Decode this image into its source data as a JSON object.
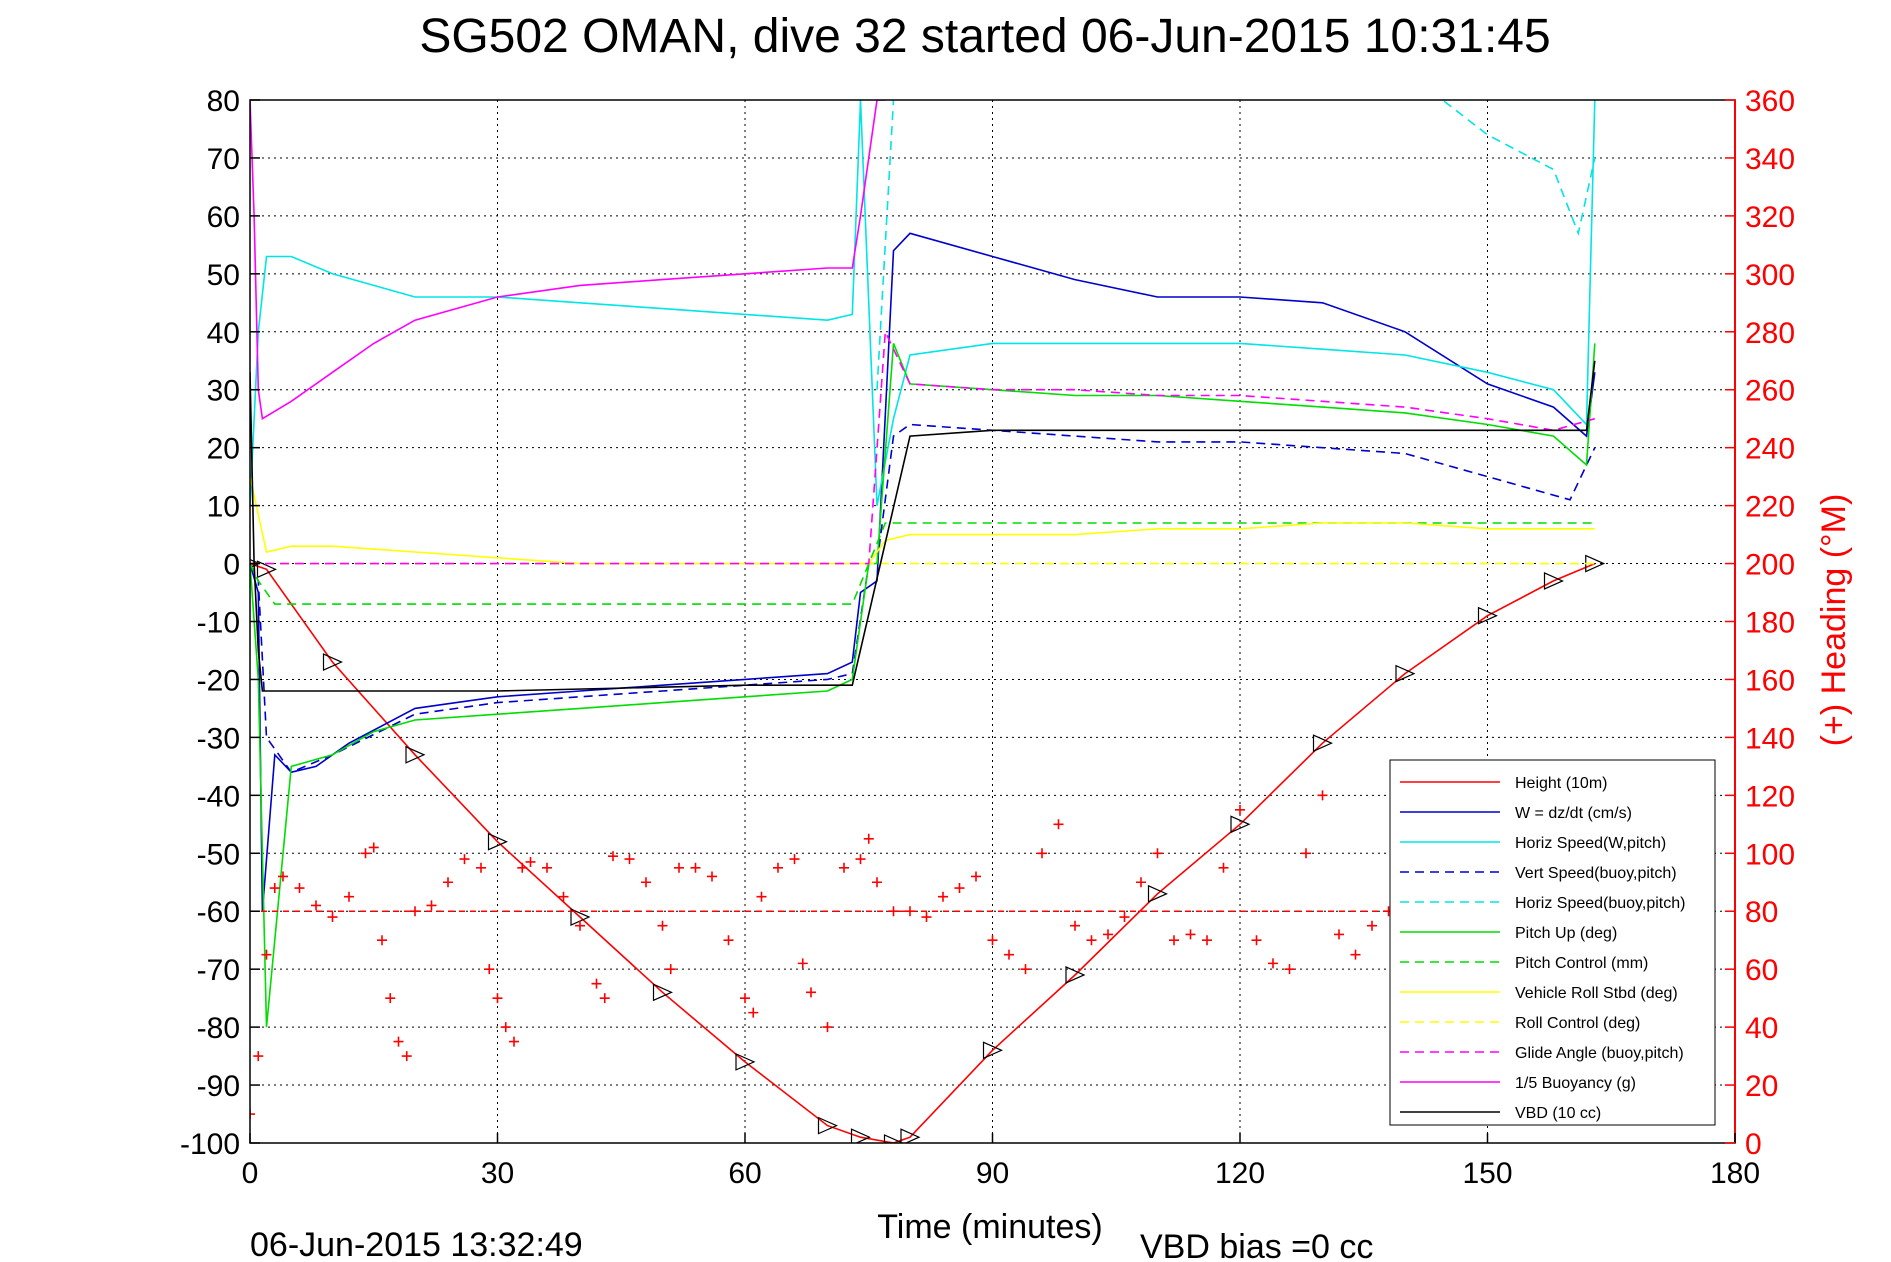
{
  "chart_data": {
    "type": "line",
    "title": "SG502 OMAN, dive 32 started 06-Jun-2015 10:31:45",
    "xlabel": "Time (minutes)",
    "ylabel_right": "(+) Heading (°M)",
    "xlim": [
      0,
      180
    ],
    "ylim": [
      -100,
      80
    ],
    "ylim_right": [
      0,
      360
    ],
    "x_ticks": [
      "0",
      "30",
      "60",
      "90",
      "120",
      "150",
      "180"
    ],
    "y_ticks": [
      "80",
      "70",
      "60",
      "50",
      "40",
      "30",
      "20",
      "10",
      "0",
      "-10",
      "-20",
      "-30",
      "-40",
      "-50",
      "-60",
      "-70",
      "-80",
      "-90",
      "-100"
    ],
    "y_right_ticks": [
      "360",
      "340",
      "320",
      "300",
      "280",
      "260",
      "240",
      "220",
      "200",
      "180",
      "160",
      "140",
      "120",
      "100",
      "80",
      "60",
      "40",
      "20",
      "0"
    ],
    "grid": true,
    "legend_position": "bottom-right",
    "footer_left": "06-Jun-2015 13:32:49",
    "footer_right": "VBD bias =0 cc",
    "colors": {
      "red": "#ff0000",
      "blue": "#0000cc",
      "cyan": "#00e5e5",
      "green": "#00dd00",
      "yellow": "#ffff00",
      "magenta": "#ff00ff",
      "black": "#000000"
    },
    "series": [
      {
        "name": "Height (10m)",
        "color": "#ff0000",
        "style": "solid",
        "marker": "triangle",
        "x": [
          0,
          2,
          10,
          20,
          30,
          40,
          50,
          60,
          70,
          74,
          78,
          80,
          90,
          100,
          110,
          120,
          130,
          140,
          150,
          158,
          163
        ],
        "y": [
          0,
          -1,
          -17,
          -33,
          -48,
          -61,
          -74,
          -86,
          -97,
          -99,
          -100,
          -99,
          -84,
          -71,
          -57,
          -45,
          -31,
          -19,
          -9,
          -3,
          0
        ]
      },
      {
        "name": "W = dz/dt (cm/s)",
        "color": "#0000cc",
        "style": "solid",
        "x": [
          0,
          1,
          1.5,
          3,
          5,
          8,
          12,
          16,
          20,
          25,
          30,
          40,
          50,
          60,
          70,
          73,
          74,
          76,
          78,
          80,
          90,
          100,
          110,
          120,
          130,
          140,
          150,
          158,
          162,
          163
        ],
        "y": [
          0,
          -5,
          -60,
          -33,
          -36,
          -35,
          -31,
          -28,
          -25,
          -24,
          -23,
          -22,
          -21,
          -20,
          -19,
          -17,
          -5,
          -3,
          54,
          57,
          53,
          49,
          46,
          46,
          45,
          40,
          31,
          27,
          22,
          33
        ]
      },
      {
        "name": "Horiz Speed(W,pitch)",
        "color": "#00e5e5",
        "style": "solid",
        "x": [
          0,
          1,
          2,
          5,
          10,
          20,
          30,
          40,
          50,
          60,
          70,
          73,
          74,
          76,
          78,
          80,
          90,
          100,
          110,
          120,
          130,
          140,
          150,
          158,
          162,
          163
        ],
        "y": [
          10,
          40,
          53,
          53,
          50,
          46,
          46,
          45,
          44,
          43,
          42,
          43,
          80,
          10,
          25,
          36,
          38,
          38,
          38,
          38,
          37,
          36,
          33,
          30,
          24,
          80
        ]
      },
      {
        "name": "Vert Speed(buoy,pitch)",
        "color": "#0000cc",
        "style": "dashed",
        "x": [
          0,
          1,
          2,
          5,
          10,
          20,
          30,
          40,
          50,
          60,
          70,
          73,
          75,
          76,
          78,
          80,
          90,
          100,
          110,
          120,
          130,
          140,
          150,
          160,
          163
        ],
        "y": [
          0,
          -3,
          -30,
          -36,
          -33,
          -26,
          -24,
          -23,
          -22,
          -21,
          -20,
          -19,
          0,
          0,
          22,
          24,
          23,
          22,
          21,
          21,
          20,
          19,
          15,
          11,
          20
        ]
      },
      {
        "name": "Horiz Speed(buoy,pitch)",
        "color": "#00e5e5",
        "style": "dashed",
        "x": [
          76,
          78,
          80,
          90,
          100,
          110,
          120,
          130,
          140,
          150,
          158,
          161,
          163
        ],
        "y": [
          30,
          80,
          120,
          115,
          110,
          105,
          100,
          95,
          85,
          74,
          68,
          57,
          70
        ]
      },
      {
        "name": "Pitch Up (deg)",
        "color": "#00dd00",
        "style": "solid",
        "x": [
          0,
          1,
          2,
          5,
          10,
          15,
          20,
          30,
          40,
          50,
          60,
          70,
          73,
          75,
          76,
          78,
          80,
          90,
          100,
          110,
          120,
          130,
          140,
          150,
          158,
          162,
          163
        ],
        "y": [
          0,
          -20,
          -80,
          -35,
          -33,
          -29,
          -27,
          -26,
          -25,
          -24,
          -23,
          -22,
          -20,
          0,
          0,
          38,
          31,
          30,
          29,
          29,
          28,
          27,
          26,
          24,
          22,
          17,
          38
        ]
      },
      {
        "name": "Pitch Control (mm)",
        "color": "#00dd00",
        "style": "dashed",
        "x": [
          0,
          1,
          3,
          10,
          30,
          60,
          73,
          75,
          77,
          80,
          100,
          130,
          150,
          163
        ],
        "y": [
          0,
          -3,
          -7,
          -7,
          -7,
          -7,
          -7,
          0,
          7,
          7,
          7,
          7,
          7,
          7
        ]
      },
      {
        "name": "Vehicle Roll Stbd (deg)",
        "color": "#ffff00",
        "style": "solid",
        "x": [
          0,
          2,
          5,
          10,
          20,
          30,
          40,
          50,
          60,
          70,
          73,
          75,
          77,
          80,
          90,
          100,
          110,
          120,
          130,
          140,
          150,
          163
        ],
        "y": [
          15,
          2,
          3,
          3,
          2,
          1,
          0,
          0,
          0,
          0,
          0,
          0,
          4,
          5,
          5,
          5,
          6,
          6,
          7,
          7,
          6,
          6
        ]
      },
      {
        "name": "Roll Control (deg)",
        "color": "#ffff00",
        "style": "dashed",
        "x": [
          0,
          5,
          30,
          60,
          73,
          76,
          80,
          120,
          163
        ],
        "y": [
          0,
          0,
          0,
          0,
          0,
          0,
          0,
          0,
          0
        ]
      },
      {
        "name": "Glide Angle (buoy,pitch)",
        "color": "#ff00ff",
        "style": "dashed",
        "x": [
          0,
          10,
          30,
          60,
          73,
          75,
          77,
          80,
          90,
          100,
          110,
          120,
          130,
          140,
          150,
          158,
          163
        ],
        "y": [
          0,
          0,
          0,
          0,
          0,
          0,
          40,
          31,
          30,
          30,
          29,
          29,
          28,
          27,
          25,
          23,
          25
        ]
      },
      {
        "name": "1/5 Buoyancy (g)",
        "color": "#ff00ff",
        "style": "solid",
        "x": [
          0,
          0.5,
          1,
          1.5,
          5,
          10,
          15,
          20,
          30,
          40,
          50,
          60,
          70,
          73,
          74,
          76,
          77
        ],
        "y": [
          80,
          60,
          30,
          25,
          28,
          33,
          38,
          42,
          46,
          48,
          49,
          50,
          51,
          51,
          60,
          80,
          80
        ]
      },
      {
        "name": "VBD (10 cc)",
        "color": "#000000",
        "style": "solid",
        "x": [
          0,
          0.5,
          1,
          1.5,
          10,
          30,
          60,
          73,
          80,
          90,
          100,
          120,
          150,
          162,
          163
        ],
        "y": [
          33,
          0,
          -15,
          -22,
          -22,
          -22,
          -21,
          -21,
          22,
          23,
          23,
          23,
          23,
          23,
          35
        ]
      }
    ],
    "heading_scatter": {
      "name": "(+) Heading (°M)",
      "color": "#ff0000",
      "marker": "+",
      "x": [
        0,
        1,
        2,
        3,
        4,
        6,
        8,
        10,
        12,
        14,
        15,
        16,
        17,
        18,
        19,
        20,
        22,
        24,
        26,
        28,
        29,
        30,
        31,
        32,
        33,
        34,
        36,
        38,
        40,
        42,
        43,
        44,
        46,
        48,
        50,
        51,
        52,
        54,
        56,
        58,
        60,
        61,
        62,
        64,
        66,
        67,
        68,
        70,
        72,
        74,
        75,
        76,
        78,
        80,
        82,
        84,
        86,
        88,
        90,
        92,
        94,
        96,
        98,
        100,
        102,
        104,
        106,
        108,
        110,
        112,
        114,
        116,
        118,
        120,
        122,
        124,
        126,
        128,
        130,
        132,
        134,
        136,
        138
      ],
      "y": [
        10,
        30,
        65,
        88,
        92,
        88,
        82,
        78,
        85,
        100,
        102,
        70,
        50,
        35,
        30,
        80,
        82,
        90,
        98,
        95,
        60,
        50,
        40,
        35,
        95,
        97,
        95,
        85,
        75,
        55,
        50,
        99,
        98,
        90,
        75,
        60,
        95,
        95,
        92,
        70,
        50,
        45,
        85,
        95,
        98,
        62,
        52,
        40,
        95,
        98,
        105,
        90,
        80,
        80,
        78,
        85,
        88,
        92,
        70,
        65,
        60,
        100,
        110,
        75,
        70,
        72,
        78,
        90,
        100,
        70,
        72,
        70,
        95,
        115,
        70,
        62,
        60,
        100,
        120,
        72,
        65,
        75,
        80
      ]
    },
    "mean_heading": {
      "color": "#ff0000",
      "style": "dashed",
      "value": 80
    }
  }
}
